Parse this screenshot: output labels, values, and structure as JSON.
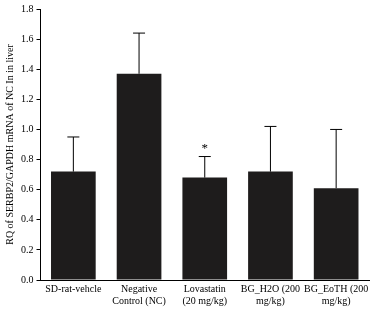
{
  "chart_data": {
    "type": "bar",
    "y_label": "RQ of SERBP2/GAPDH mRNA of NC In in liver",
    "categories": [
      "SD-rat-vehcle",
      "Negative Control (NC)",
      "Lovastatin (20 mg/kg)",
      "BG_H2O (200 mg/kg)",
      "BG_EoTH (200 mg/kg)"
    ],
    "values": [
      0.72,
      1.37,
      0.68,
      0.72,
      0.61
    ],
    "errors": [
      0.23,
      0.27,
      0.14,
      0.3,
      0.39
    ],
    "color": "#1e1c1c",
    "ylim": [
      0,
      1.8
    ],
    "yticks": [
      {
        "value": 0,
        "label": "0.0"
      },
      0.2,
      0.4,
      0.6,
      0.8,
      {
        "value": 1,
        "label": "1.0"
      },
      1.2,
      1.4,
      1.6,
      1.8
    ],
    "grid": false,
    "annotations": [
      {
        "text": "*",
        "category": "Lovastatin (20 mg/kg)"
      }
    ]
  }
}
